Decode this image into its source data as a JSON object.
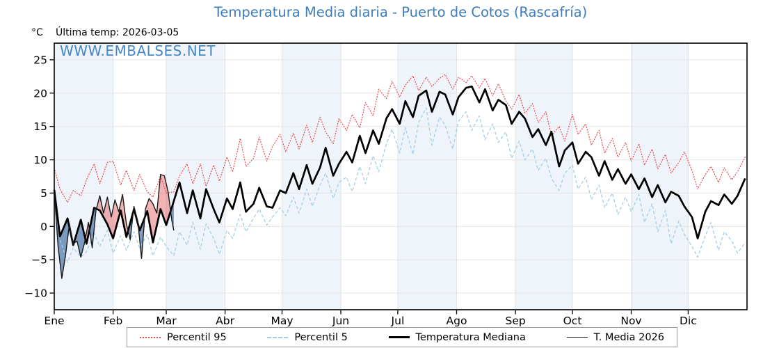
{
  "header": {
    "title": "Temperatura Media diaria - Puerto de Cotos (Rascafría)",
    "unit_label": "°C",
    "last_temp_label": "Última temp: 2026-03-05",
    "watermark": "WWW.EMBALSES.NET"
  },
  "legend": {
    "items": [
      {
        "label": "Percentil 95"
      },
      {
        "label": "Percentil 5"
      },
      {
        "label": "Temperatura Mediana"
      },
      {
        "label": "T. Media 2026"
      }
    ]
  },
  "colors": {
    "title": "#3e7dbd",
    "watermark": "#4687c9",
    "axis": "#000000",
    "grid_horizontal": "#e4e4e4",
    "grid_vertical": "#dce5ec",
    "month_band": "#eef4fa",
    "fill_above_median": "rgba(226,86,92,0.45)",
    "fill_below_median": "rgba(45,95,150,0.6)",
    "legend_border": "#999999"
  },
  "chart_data": {
    "type": "line",
    "title": "Temperatura Media diaria - Puerto de Cotos (Rascafría)",
    "y_unit": "°C",
    "ylim": [
      -12.5,
      27.5
    ],
    "yticks": [
      -10,
      -5,
      0,
      5,
      10,
      15,
      20,
      25
    ],
    "x_unit": "day_of_year",
    "month_labels": [
      "Ene",
      "Feb",
      "Mar",
      "Abr",
      "May",
      "Jun",
      "Jul",
      "Ago",
      "Sep",
      "Oct",
      "Nov",
      "Dic"
    ],
    "month_start_days": [
      1,
      32,
      60,
      91,
      121,
      152,
      182,
      213,
      244,
      274,
      305,
      335
    ],
    "shaded_months": [
      "Ene",
      "Mar",
      "May",
      "Jul",
      "Sep",
      "Nov"
    ],
    "fills": {
      "between": [
        "T. Media 2026",
        "Temperatura Mediana"
      ],
      "above_color": "rgba(226,86,92,0.45)",
      "below_color": "rgba(45,95,150,0.6)"
    },
    "series": [
      {
        "name": "Percentil 95",
        "line_style": "dotted",
        "color": "#e8484e",
        "width": 1.2,
        "days": [
          1,
          4,
          8,
          11,
          15,
          18,
          22,
          25,
          29,
          32,
          36,
          39,
          43,
          46,
          50,
          53,
          57,
          60,
          64,
          67,
          71,
          74,
          78,
          81,
          85,
          88,
          92,
          95,
          99,
          102,
          106,
          109,
          113,
          116,
          120,
          123,
          127,
          130,
          134,
          137,
          141,
          144,
          148,
          151,
          155,
          158,
          162,
          165,
          169,
          172,
          176,
          179,
          183,
          186,
          190,
          193,
          197,
          200,
          204,
          207,
          211,
          214,
          218,
          221,
          225,
          228,
          232,
          235,
          239,
          242,
          246,
          249,
          253,
          256,
          260,
          263,
          267,
          270,
          274,
          277,
          281,
          284,
          288,
          291,
          295,
          298,
          302,
          305,
          309,
          312,
          316,
          319,
          323,
          326,
          330,
          333,
          337,
          340,
          344,
          347,
          351,
          354,
          358,
          361,
          365
        ],
        "values": [
          8.8,
          5.6,
          3.6,
          5.4,
          4.6,
          7.0,
          9.4,
          6.4,
          9.6,
          9.8,
          6.2,
          8.4,
          5.4,
          7.8,
          5.2,
          4.4,
          7.6,
          5.0,
          5.2,
          7.6,
          9.4,
          6.4,
          9.4,
          6.0,
          9.2,
          6.8,
          10.4,
          8.2,
          13.2,
          9.0,
          10.2,
          13.4,
          9.8,
          12.0,
          13.8,
          11.2,
          14.0,
          11.6,
          15.2,
          12.6,
          16.4,
          14.2,
          12.4,
          16.2,
          14.4,
          16.8,
          14.8,
          18.6,
          16.6,
          20.6,
          19.2,
          21.8,
          19.4,
          21.2,
          22.6,
          20.4,
          22.4,
          21.0,
          22.2,
          22.8,
          20.6,
          22.4,
          21.6,
          22.6,
          20.8,
          22.2,
          19.6,
          21.4,
          18.8,
          17.6,
          19.8,
          17.0,
          18.4,
          15.6,
          17.2,
          13.6,
          15.0,
          12.8,
          16.8,
          13.8,
          15.4,
          12.2,
          14.4,
          11.0,
          13.2,
          10.4,
          12.6,
          9.8,
          12.4,
          9.2,
          11.6,
          8.6,
          10.8,
          8.0,
          9.6,
          11.2,
          8.4,
          5.6,
          7.8,
          9.0,
          6.6,
          8.8,
          7.0,
          8.2,
          10.4
        ]
      },
      {
        "name": "Percentil 5",
        "line_style": "dashed",
        "color": "#a5cee3",
        "width": 1.3,
        "days": [
          1,
          4,
          8,
          11,
          15,
          18,
          22,
          25,
          29,
          32,
          36,
          39,
          43,
          46,
          50,
          53,
          57,
          60,
          64,
          67,
          71,
          74,
          78,
          81,
          85,
          88,
          92,
          95,
          99,
          102,
          106,
          109,
          113,
          116,
          120,
          123,
          127,
          130,
          134,
          137,
          141,
          144,
          148,
          151,
          155,
          158,
          162,
          165,
          169,
          172,
          176,
          179,
          183,
          186,
          190,
          193,
          197,
          200,
          204,
          207,
          211,
          214,
          218,
          221,
          225,
          228,
          232,
          235,
          239,
          242,
          246,
          249,
          253,
          256,
          260,
          263,
          267,
          270,
          274,
          277,
          281,
          284,
          288,
          291,
          295,
          298,
          302,
          305,
          309,
          312,
          316,
          319,
          323,
          326,
          330,
          333,
          337,
          340,
          344,
          347,
          351,
          354,
          358,
          361,
          365
        ],
        "values": [
          3.4,
          -2.0,
          -5.4,
          -3.2,
          -4.6,
          -3.8,
          -1.0,
          -3.0,
          -0.6,
          -4.0,
          -1.4,
          -3.6,
          -0.8,
          -3.2,
          -1.2,
          -4.4,
          -1.6,
          -3.0,
          -4.4,
          -0.8,
          -2.8,
          0.6,
          -3.4,
          0.4,
          -1.8,
          -4.2,
          -0.6,
          -1.8,
          1.8,
          -0.8,
          1.2,
          2.6,
          0.2,
          1.4,
          2.8,
          1.6,
          4.4,
          2.0,
          5.6,
          3.0,
          6.2,
          8.0,
          4.2,
          6.6,
          7.4,
          5.2,
          9.0,
          6.4,
          10.6,
          8.2,
          12.4,
          14.6,
          11.0,
          14.8,
          10.8,
          15.6,
          17.8,
          12.2,
          16.4,
          15.2,
          11.6,
          15.8,
          17.2,
          14.4,
          16.6,
          13.0,
          15.4,
          12.6,
          14.2,
          10.2,
          12.8,
          10.0,
          11.6,
          8.4,
          10.2,
          7.2,
          5.4,
          8.0,
          9.2,
          5.6,
          7.4,
          4.0,
          6.2,
          2.8,
          5.0,
          1.8,
          4.4,
          2.2,
          4.8,
          0.6,
          3.4,
          -0.8,
          2.4,
          -2.6,
          0.8,
          -1.2,
          -3.0,
          -4.6,
          -1.4,
          0.6,
          -3.6,
          -0.8,
          -2.2,
          -4.0,
          -2.4
        ]
      },
      {
        "name": "Temperatura Mediana",
        "line_style": "solid",
        "color": "#000000",
        "width": 2.7,
        "days": [
          1,
          4,
          8,
          11,
          15,
          18,
          22,
          25,
          29,
          32,
          36,
          39,
          43,
          46,
          50,
          53,
          57,
          60,
          64,
          67,
          71,
          74,
          78,
          81,
          85,
          88,
          92,
          95,
          99,
          102,
          106,
          109,
          113,
          116,
          120,
          123,
          127,
          130,
          134,
          137,
          141,
          144,
          148,
          151,
          155,
          158,
          162,
          165,
          169,
          172,
          176,
          179,
          183,
          186,
          190,
          193,
          197,
          200,
          204,
          207,
          211,
          214,
          218,
          221,
          225,
          228,
          232,
          235,
          239,
          242,
          246,
          249,
          253,
          256,
          260,
          263,
          267,
          270,
          274,
          277,
          281,
          284,
          288,
          291,
          295,
          298,
          302,
          305,
          309,
          312,
          316,
          319,
          323,
          326,
          330,
          333,
          337,
          340,
          344,
          347,
          351,
          354,
          358,
          361,
          365
        ],
        "values": [
          5.5,
          -1.5,
          1.2,
          -2.8,
          1.0,
          -2.6,
          2.8,
          2.4,
          0.3,
          -1.8,
          2.4,
          -1.6,
          2.6,
          -0.6,
          2.3,
          -2.4,
          2.6,
          0.2,
          3.8,
          6.6,
          2.0,
          5.4,
          1.2,
          5.6,
          2.6,
          0.6,
          4.2,
          2.6,
          6.6,
          2.2,
          3.4,
          5.8,
          3.0,
          2.8,
          5.4,
          5.0,
          8.0,
          5.6,
          9.2,
          6.4,
          8.8,
          11.8,
          7.6,
          9.4,
          11.2,
          9.6,
          13.6,
          11.0,
          14.4,
          12.4,
          16.2,
          17.6,
          15.4,
          18.8,
          16.4,
          19.6,
          20.4,
          17.2,
          20.2,
          19.8,
          16.8,
          19.4,
          20.8,
          21.0,
          18.6,
          20.6,
          17.4,
          19.0,
          18.2,
          15.4,
          17.2,
          16.2,
          13.4,
          14.6,
          12.2,
          14.2,
          9.0,
          11.4,
          12.6,
          9.4,
          11.2,
          10.4,
          7.6,
          9.8,
          7.0,
          8.6,
          6.4,
          7.8,
          5.6,
          7.2,
          4.4,
          6.2,
          3.6,
          5.2,
          4.6,
          3.0,
          1.4,
          -1.8,
          2.2,
          3.8,
          3.2,
          4.8,
          3.4,
          4.6,
          7.2
        ]
      },
      {
        "name": "T. Media 2026",
        "line_style": "solid",
        "color": "#1a1a1a",
        "width": 1.4,
        "days": [
          1,
          3,
          5,
          7,
          9,
          11,
          13,
          15,
          17,
          19,
          21,
          23,
          25,
          27,
          29,
          31,
          33,
          35,
          37,
          39,
          41,
          43,
          45,
          47,
          49,
          51,
          53,
          55,
          57,
          59,
          61,
          63,
          64
        ],
        "values": [
          5.4,
          -3.0,
          -7.8,
          -4.2,
          0.4,
          -2.6,
          -2.2,
          -4.6,
          -2.4,
          0.6,
          -3.2,
          2.4,
          4.6,
          2.0,
          4.4,
          1.4,
          4.0,
          2.2,
          4.8,
          0.4,
          -2.0,
          3.0,
          0.8,
          -4.8,
          2.6,
          4.2,
          3.4,
          2.0,
          7.8,
          7.6,
          5.2,
          0.8,
          -0.6
        ]
      }
    ]
  }
}
